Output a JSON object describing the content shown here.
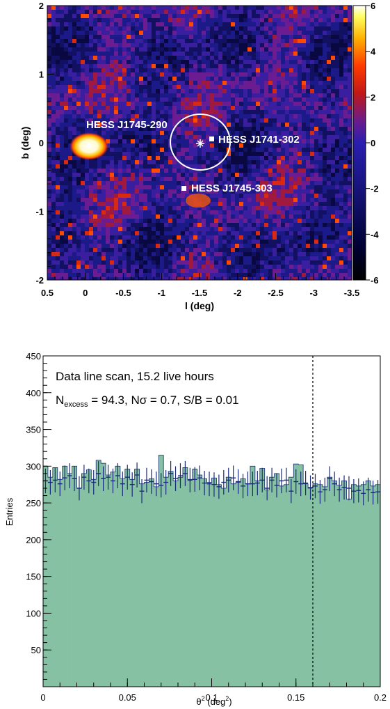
{
  "chart_data": [
    {
      "type": "heatmap",
      "xlabel": "l (deg)",
      "ylabel": "b (deg)",
      "xlim": [
        0.5,
        -3.5
      ],
      "ylim": [
        -2,
        2
      ],
      "x_ticks": [
        "0.5",
        "0",
        "-0.5",
        "-1",
        "-1.5",
        "-2",
        "-2.5",
        "-3",
        "-3.5"
      ],
      "y_ticks": [
        "2",
        "1",
        "0",
        "-1",
        "-2"
      ],
      "colorbar": {
        "range": [
          -6,
          6
        ],
        "ticks": [
          "6",
          "4",
          "2",
          "0",
          "-2",
          "-4",
          "-6"
        ]
      },
      "sources": [
        {
          "name": "HESS J1745-290",
          "l": 0.0,
          "b": 0.0,
          "marker": "bright-blob"
        },
        {
          "name": "HESS J1741-302",
          "l": -1.65,
          "b": 0.05,
          "marker": "square"
        },
        {
          "name": "HESS J1745-303",
          "l": -1.3,
          "b": -0.65,
          "marker": "square"
        }
      ],
      "region": {
        "center_l": -1.5,
        "center_b": 0.02,
        "radius_deg": 0.4,
        "center_marker": "star"
      }
    },
    {
      "type": "bar",
      "xlabel_main": "θ",
      "xlabel_sup": "2",
      "xlabel_rest": " (deg",
      "xlabel_sup2": "2",
      "xlabel_end": ")",
      "ylabel": "Entries",
      "xlim": [
        0,
        0.2
      ],
      "ylim": [
        0,
        450
      ],
      "x_ticks": [
        "0",
        "0.05",
        "0.1",
        "0.15",
        "0.2"
      ],
      "y_ticks": [
        "450",
        "400",
        "350",
        "300",
        "250",
        "200",
        "150",
        "100",
        "50"
      ],
      "cut_line_x": 0.16,
      "annotation_line1": "Data line scan, 15.2 live hours",
      "annotation_line2": {
        "n": "N",
        "n_sub": "excess",
        "rest": " = 94.3, Nσ = 0.7, S/B = 0.01"
      },
      "series": [
        {
          "style": "filled-histogram",
          "color": "#86c1a3",
          "values": [
            300,
            285,
            298,
            282,
            300,
            290,
            300,
            270,
            290,
            295,
            282,
            308,
            304,
            288,
            292,
            300,
            283,
            296,
            282,
            296,
            276,
            278,
            283,
            272,
            315,
            285,
            293,
            280,
            285,
            298,
            282,
            296,
            288,
            283,
            278,
            284,
            275,
            270,
            285,
            276,
            278,
            283,
            276,
            300,
            280,
            297,
            268,
            285,
            290,
            273,
            275,
            285,
            303,
            302,
            276,
            270,
            276,
            275,
            272,
            285,
            280,
            274,
            280,
            255,
            275,
            273,
            275,
            280,
            273,
            275
          ]
        },
        {
          "style": "points-with-errors",
          "color": "#1a2a7a",
          "values": [
            280,
            278,
            281,
            276,
            284,
            287,
            283,
            270,
            285,
            280,
            278,
            290,
            283,
            285,
            280,
            287,
            276,
            285,
            275,
            288,
            266,
            281,
            279,
            276,
            274,
            278,
            290,
            283,
            287,
            290,
            281,
            282,
            284,
            277,
            276,
            275,
            272,
            278,
            281,
            284,
            279,
            273,
            276,
            276,
            277,
            281,
            270,
            281,
            274,
            280,
            281,
            266,
            279,
            276,
            277,
            271,
            273,
            265,
            268,
            283,
            276,
            268,
            271,
            270,
            266,
            267,
            263,
            268,
            264,
            265
          ]
        }
      ]
    }
  ],
  "colors": {
    "bar_fill": "#86c1a3",
    "points": "#1a2a7a",
    "frame": "#000000"
  }
}
